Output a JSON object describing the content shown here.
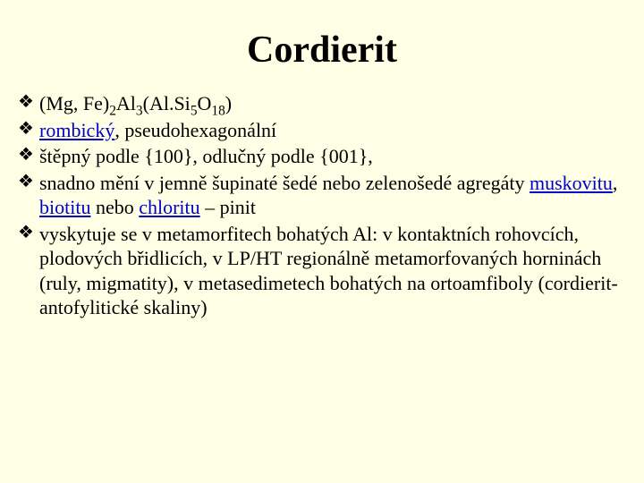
{
  "slide": {
    "title": "Cordierit",
    "background_color": "#ffffe5",
    "text_color": "#000000",
    "link_color": "#0000cc",
    "title_font_size": 42,
    "body_font_size": 22,
    "bullet_glyph": "❖",
    "bullets": [
      {
        "segments": [
          {
            "type": "text",
            "text": "(Mg, Fe)"
          },
          {
            "type": "sub",
            "text": "2"
          },
          {
            "type": "text",
            "text": "Al"
          },
          {
            "type": "sub",
            "text": "3"
          },
          {
            "type": "text",
            "text": "(Al.Si"
          },
          {
            "type": "sub",
            "text": "5"
          },
          {
            "type": "text",
            "text": "O"
          },
          {
            "type": "sub",
            "text": "18"
          },
          {
            "type": "text",
            "text": ")"
          }
        ]
      },
      {
        "segments": [
          {
            "type": "link",
            "text": "rombický"
          },
          {
            "type": "text",
            "text": ", pseudohexagonální"
          }
        ]
      },
      {
        "segments": [
          {
            "type": "text",
            "text": "štěpný podle {100}, odlučný podle {001},"
          }
        ]
      },
      {
        "segments": [
          {
            "type": "text",
            "text": "snadno mění v jemně šupinaté šedé nebo zelenošedé agregáty "
          },
          {
            "type": "link",
            "text": "muskovitu"
          },
          {
            "type": "text",
            "text": ", "
          },
          {
            "type": "link",
            "text": "biotitu"
          },
          {
            "type": "text",
            "text": " nebo "
          },
          {
            "type": "link",
            "text": "chloritu"
          },
          {
            "type": "text",
            "text": " – pinit"
          }
        ]
      },
      {
        "segments": [
          {
            "type": "text",
            "text": "vyskytuje se v metamorfitech bohatých Al: v kontaktních rohovcích, plodových břidlicích, v LP/HT regionálně metamorfovaných horninách (ruly, migmatity), v metasedimetech bohatých na ortoamfiboly (cordierit-antofylitické skaliny)"
          }
        ]
      }
    ]
  }
}
